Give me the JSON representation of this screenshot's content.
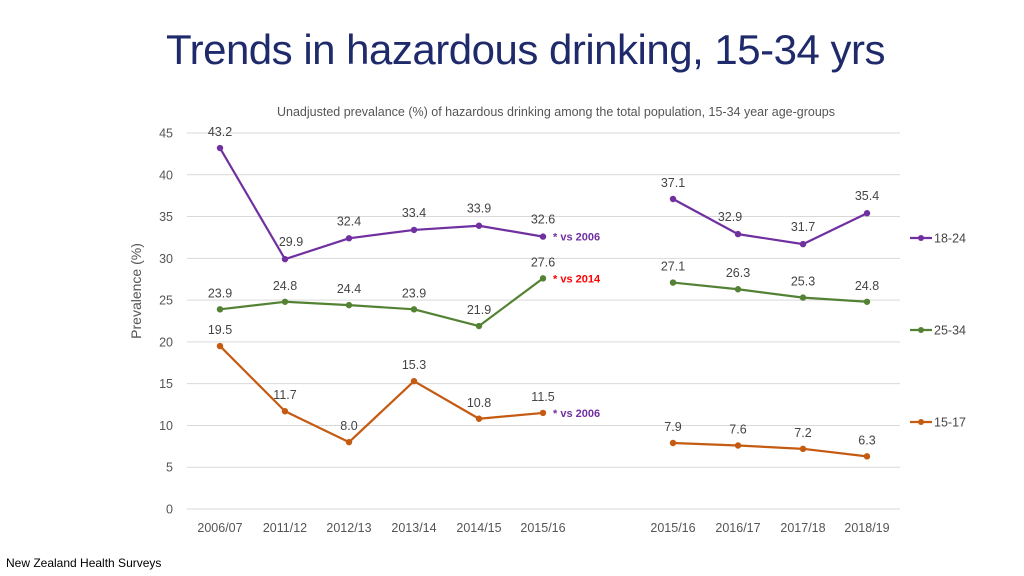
{
  "title": "Trends in hazardous drinking, 15-34 yrs",
  "source": "New Zealand Health Surveys",
  "chart_data": {
    "type": "line",
    "title": "Unadjusted prevalance (%) of hazardous drinking among the total population, 15-34 year age-groups",
    "xlabel": "",
    "ylabel": "Prevalence (%)",
    "ylim": [
      0,
      45
    ],
    "yticks": [
      "0",
      "5",
      "10",
      "15",
      "20",
      "25",
      "30",
      "35",
      "40",
      "45"
    ],
    "grid": true,
    "legend_position": "right",
    "categories": [
      "2006/07",
      "2011/12",
      "2012/13",
      "2013/14",
      "2014/15",
      "2015/16",
      "2015/16",
      "2016/17",
      "2017/18",
      "2018/19"
    ],
    "series": [
      {
        "name": "18-24",
        "color": "#7030a0",
        "segments": [
          {
            "x_index": [
              0,
              1,
              2,
              3,
              4,
              5
            ],
            "values": [
              43.2,
              29.9,
              32.4,
              33.4,
              33.9,
              32.6
            ]
          },
          {
            "x_index": [
              6,
              7,
              8,
              9
            ],
            "values": [
              37.1,
              32.9,
              31.7,
              35.4
            ]
          }
        ],
        "labels": [
          "43.2",
          "29.9",
          "32.4",
          "33.4",
          "33.9",
          "32.6",
          "37.1",
          "32.9",
          "31.7",
          "35.4"
        ]
      },
      {
        "name": "25-34",
        "color": "#548235",
        "segments": [
          {
            "x_index": [
              0,
              1,
              2,
              3,
              4,
              5
            ],
            "values": [
              23.9,
              24.8,
              24.4,
              23.9,
              21.9,
              27.6
            ]
          },
          {
            "x_index": [
              6,
              7,
              8,
              9
            ],
            "values": [
              27.1,
              26.3,
              25.3,
              24.8
            ]
          }
        ],
        "labels": [
          "23.9",
          "24.8",
          "24.4",
          "23.9",
          "21.9",
          "27.6",
          "27.1",
          "26.3",
          "25.3",
          "24.8"
        ]
      },
      {
        "name": "15-17",
        "color": "#c55a11",
        "segments": [
          {
            "x_index": [
              0,
              1,
              2,
              3,
              4,
              5
            ],
            "values": [
              19.5,
              11.7,
              8.0,
              15.3,
              10.8,
              11.5
            ]
          },
          {
            "x_index": [
              6,
              7,
              8,
              9
            ],
            "values": [
              7.9,
              7.6,
              7.2,
              6.3
            ]
          }
        ],
        "labels": [
          "19.5",
          "11.7",
          "8.0",
          "15.3",
          "10.8",
          "11.5",
          "7.9",
          "7.6",
          "7.2",
          "6.3"
        ]
      }
    ],
    "annotations": [
      {
        "text": "* vs 2006",
        "series": "18-24",
        "x_index": 5,
        "color": "#7030a0"
      },
      {
        "text": "* vs 2014",
        "series": "25-34",
        "x_index": 5,
        "color": "#ff0000"
      },
      {
        "text": "* vs 2006",
        "series": "15-17",
        "x_index": 5,
        "color": "#7030a0"
      }
    ]
  }
}
